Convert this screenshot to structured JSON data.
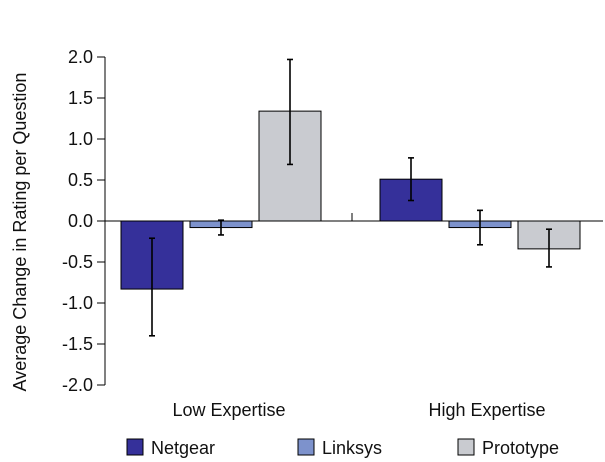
{
  "chart_data": {
    "type": "bar",
    "title": "",
    "xlabel": "",
    "ylabel": "Average Change in Rating per Question",
    "ylim": [
      -2.0,
      2.0
    ],
    "yticks": [
      "2.0",
      "1.5",
      "1.0",
      "0.5",
      "0.0",
      "-0.5",
      "-1.0",
      "-1.5",
      "-2.0"
    ],
    "ytick_values": [
      2.0,
      1.5,
      1.0,
      0.5,
      0.0,
      -0.5,
      -1.0,
      -1.5,
      -2.0
    ],
    "categories": [
      "Low Expertise",
      "High Expertise"
    ],
    "error_bars": true,
    "grid": false,
    "legend_position": "bottom",
    "series": [
      {
        "name": "Netgear",
        "color": "#35309a",
        "values": [
          -0.83,
          0.51
        ],
        "err_low": [
          -1.4,
          0.25
        ],
        "err_high": [
          -0.21,
          0.77
        ]
      },
      {
        "name": "Linksys",
        "color": "#7d92cc",
        "values": [
          -0.08,
          -0.08
        ],
        "err_low": [
          -0.17,
          -0.29
        ],
        "err_high": [
          0.01,
          0.13
        ]
      },
      {
        "name": "Prototype",
        "color": "#c9cbd0",
        "values": [
          1.34,
          -0.34
        ],
        "err_low": [
          0.69,
          -0.56
        ],
        "err_high": [
          1.97,
          -0.1
        ]
      }
    ]
  }
}
